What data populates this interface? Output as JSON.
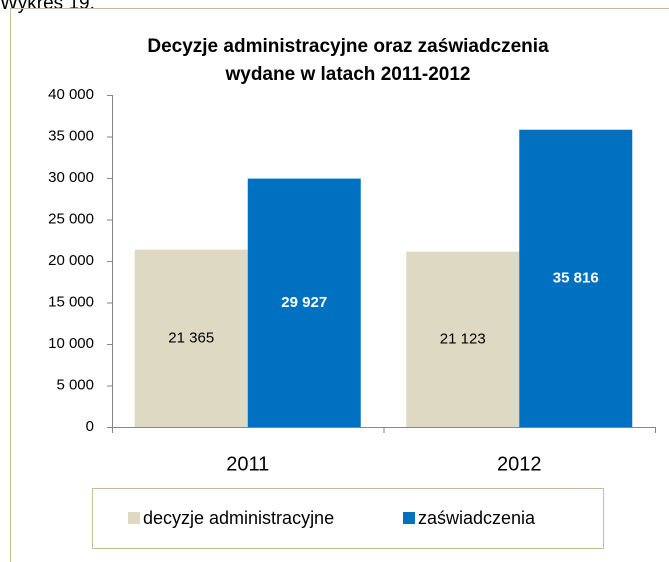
{
  "caption": "Wykres 19.",
  "chart_data": {
    "type": "bar",
    "title": [
      "Decyzje administracyjne oraz zaświadczenia",
      "wydane w latach 2011-2012"
    ],
    "categories": [
      "2011",
      "2012"
    ],
    "series": [
      {
        "name": "decyzje administracyjne",
        "color": "#ddd9c3",
        "values": [
          21365,
          21123
        ],
        "value_labels": [
          "21 365",
          "21 123"
        ],
        "label_color": "#000000",
        "label_bold": false
      },
      {
        "name": "zaświadczenia",
        "color": "#0070c0",
        "values": [
          29927,
          35816
        ],
        "value_labels": [
          "29 927",
          "35 816"
        ],
        "label_color": "#ffffff",
        "label_bold": true
      }
    ],
    "ylim": [
      0,
      40000
    ],
    "yticks": [
      0,
      {
        "value": 5000,
        "label": "5 000"
      },
      {
        "value": 10000,
        "label": "10 000"
      },
      {
        "value": 15000,
        "label": "15 000"
      },
      {
        "value": 20000,
        "label": "20 000"
      },
      {
        "value": 25000,
        "label": "25 000"
      },
      {
        "value": 30000,
        "label": "30 000"
      },
      {
        "value": 35000,
        "label": "35 000"
      },
      {
        "value": 40000,
        "label": "40 000"
      }
    ],
    "grid": false,
    "legend": "bottom"
  }
}
